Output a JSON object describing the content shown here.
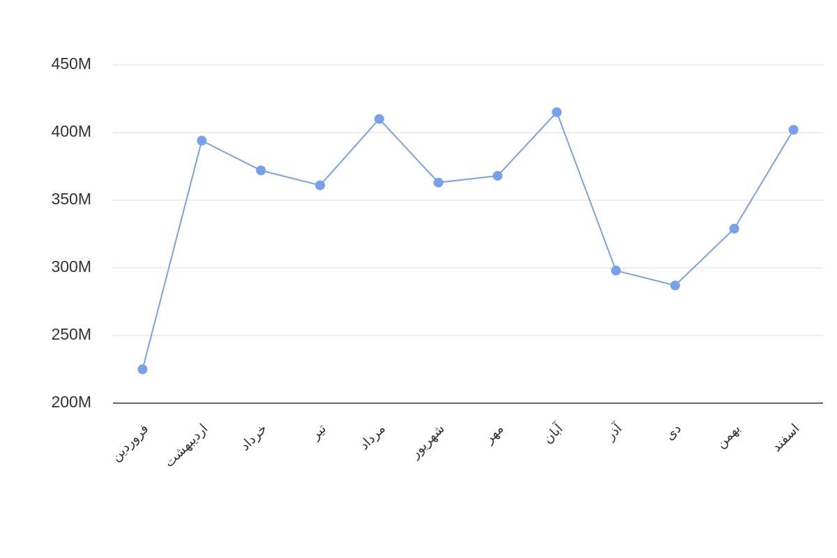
{
  "chart_data": {
    "type": "line",
    "categories": [
      "فروردین",
      "اردیبهشت",
      "خرداد",
      "تیر",
      "مرداد",
      "شهریور",
      "مهر",
      "آبان",
      "آذر",
      "دی",
      "بهمن",
      "اسفند"
    ],
    "values": [
      225000000,
      394000000,
      372000000,
      361000000,
      410000000,
      363000000,
      368000000,
      415000000,
      298000000,
      287000000,
      329000000,
      402000000
    ],
    "color": "#77a1ea",
    "ylim": [
      200000000,
      450000000
    ],
    "yticks": [
      {
        "value": 200000000,
        "label": "200M"
      },
      {
        "value": 250000000,
        "label": "250M"
      },
      {
        "value": 300000000,
        "label": "300M"
      },
      {
        "value": 350000000,
        "label": "350M"
      },
      {
        "value": 400000000,
        "label": "400M"
      },
      {
        "value": 450000000,
        "label": "450M"
      }
    ],
    "grid": true
  }
}
